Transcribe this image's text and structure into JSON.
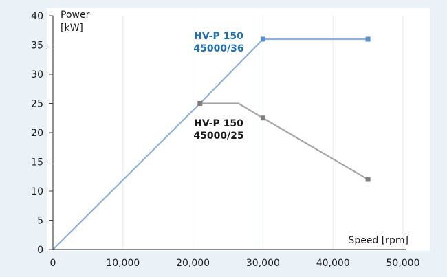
{
  "chart_data": {
    "type": "line",
    "xlabel": "Speed [rpm]",
    "ylabel_line1": "Power",
    "ylabel_line2": "[kW]",
    "xlim": [
      0,
      50000
    ],
    "ylim": [
      0,
      40
    ],
    "x_ticks": [
      "0",
      "10,000",
      "20,000",
      "30,000",
      "40,000",
      "50,000"
    ],
    "x_tick_values": [
      0,
      10000,
      20000,
      30000,
      40000,
      50000
    ],
    "y_ticks": [
      "0",
      "5",
      "10",
      "15",
      "20",
      "25",
      "30",
      "35",
      "40"
    ],
    "y_tick_values": [
      0,
      5,
      10,
      15,
      20,
      25,
      30,
      35,
      40
    ],
    "grid": "vertical",
    "series": [
      {
        "name_line1": "HV-P 150",
        "name_line2": "45000/36",
        "color": "#8fb0d8",
        "label_color": "#1f6fb2",
        "marker_color": "#5b8fc9",
        "points": [
          [
            0,
            0
          ],
          [
            21000,
            25
          ],
          [
            30000,
            36
          ],
          [
            45000,
            36
          ]
        ],
        "markers": [
          [
            30000,
            36
          ],
          [
            45000,
            36
          ]
        ]
      },
      {
        "name_line1": "HV-P 150",
        "name_line2": "45000/25",
        "color": "#a6a6a6",
        "label_color": "#1a1a1a",
        "marker_color": "#7f7f7f",
        "points": [
          [
            21000,
            25
          ],
          [
            26500,
            25
          ],
          [
            30000,
            22.5
          ],
          [
            45000,
            12
          ]
        ],
        "markers": [
          [
            21000,
            25
          ],
          [
            30000,
            22.5
          ],
          [
            45000,
            12
          ]
        ]
      }
    ]
  },
  "colors": {
    "background": "#eaf2f8",
    "plot_background": "#ffffff",
    "grid": "#e4ebf2",
    "axis": "#4a4a4a"
  }
}
